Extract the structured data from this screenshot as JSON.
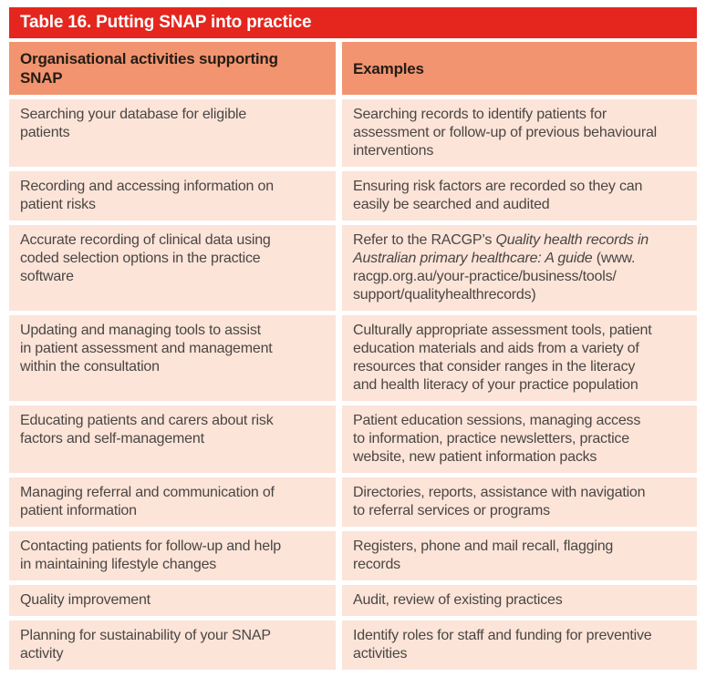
{
  "colors": {
    "title_bar_background": "#e4261e",
    "title_text": "#ffffff",
    "header_row_background": "#f29470",
    "header_text": "#241c15",
    "body_row_background": "#fce4d8",
    "body_text": "#4a4644",
    "page_background": "#ffffff"
  },
  "table": {
    "title": "Table 16. Putting SNAP into practice",
    "columns": [
      "Organisational activities supporting\nSNAP",
      "Examples"
    ],
    "rows": [
      {
        "activity": "Searching your database for eligible\npatients",
        "example": {
          "pre": "Searching records to identify patients for\nassessment or follow-up of previous behavioural\ninterventions",
          "italic": "",
          "post": ""
        }
      },
      {
        "activity": "Recording and accessing information on\npatient risks",
        "example": {
          "pre": "Ensuring risk factors are recorded so they can\neasily be searched and audited",
          "italic": "",
          "post": ""
        }
      },
      {
        "activity": "Accurate recording of clinical data using\ncoded selection options in the practice\nsoftware",
        "example": {
          "pre": "Refer to the RACGP’s ",
          "italic": "Quality health records in\nAustralian primary healthcare: A guide",
          "post": " (www.\nracgp.org.au/your-practice/business/tools/\nsupport/qualityhealthrecords)"
        }
      },
      {
        "activity": "Updating and managing tools to assist\nin patient assessment and management\nwithin the consultation",
        "example": {
          "pre": "Culturally appropriate assessment tools, patient\neducation materials and aids from a variety of\nresources that consider ranges in the literacy\nand health literacy of your practice population",
          "italic": "",
          "post": ""
        }
      },
      {
        "activity": "Educating patients and carers about risk\nfactors and self-management",
        "example": {
          "pre": "Patient education sessions, managing access\nto information, practice newsletters, practice\nwebsite, new patient information packs",
          "italic": "",
          "post": ""
        }
      },
      {
        "activity": "Managing referral and communication of\npatient information",
        "example": {
          "pre": "Directories, reports, assistance with navigation\nto referral services or programs",
          "italic": "",
          "post": ""
        }
      },
      {
        "activity": "Contacting patients for follow-up and help\nin maintaining lifestyle changes",
        "example": {
          "pre": "Registers, phone and mail recall, flagging\nrecords",
          "italic": "",
          "post": ""
        }
      },
      {
        "activity": "Quality improvement",
        "example": {
          "pre": "Audit, review of existing practices",
          "italic": "",
          "post": ""
        }
      },
      {
        "activity": "Planning for sustainability of your SNAP\nactivity",
        "example": {
          "pre": "Identify roles for staff and funding for preventive\nactivities",
          "italic": "",
          "post": ""
        }
      }
    ]
  }
}
